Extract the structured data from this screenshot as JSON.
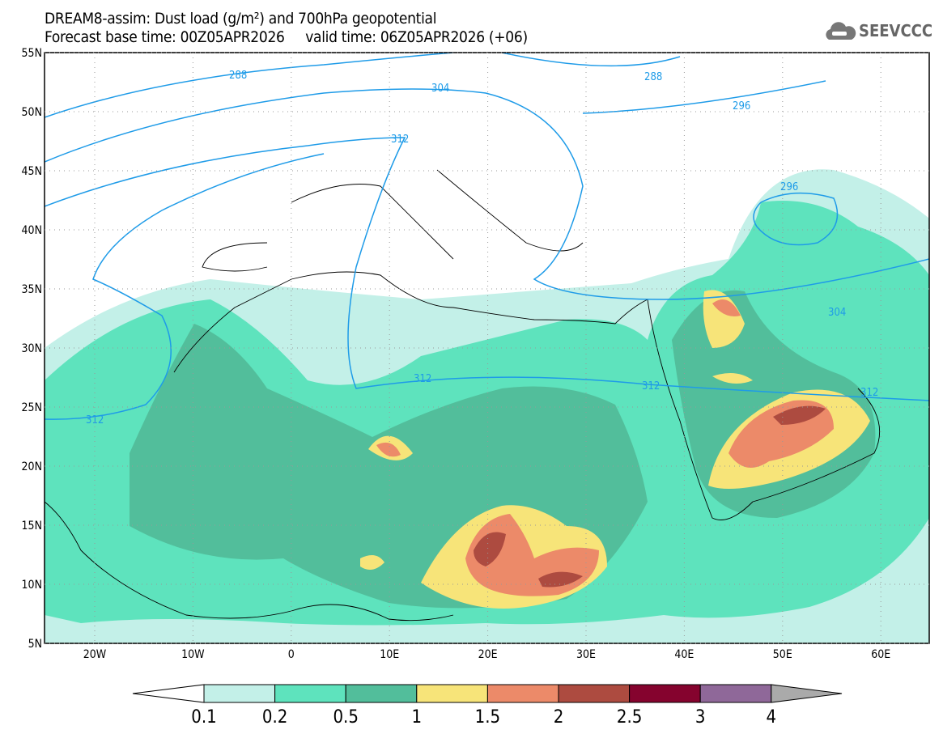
{
  "title": {
    "line1": "DREAM8-assim: Dust load (g/m²) and 700hPa geopotential",
    "line2": "Forecast base time: 00Z05APR2026     valid time: 06Z05APR2026 (+06)"
  },
  "logo": {
    "text": "SEEVCCC",
    "icon": "cloud-icon"
  },
  "map": {
    "lat_labels": [
      "55N",
      "50N",
      "45N",
      "40N",
      "35N",
      "30N",
      "25N",
      "20N",
      "15N",
      "10N",
      "5N"
    ],
    "lon_labels": [
      "20W",
      "10W",
      "0",
      "10E",
      "20E",
      "30E",
      "40E",
      "50E",
      "60E"
    ],
    "contour_color": "#1e9be8",
    "contour_labels": [
      "288",
      "304",
      "312",
      "288",
      "296",
      "296",
      "304",
      "312",
      "312",
      "312",
      "312"
    ]
  },
  "colorbar": {
    "labels": [
      "0.1",
      "0.2",
      "0.5",
      "1",
      "1.5",
      "2",
      "2.5",
      "3",
      "4"
    ],
    "colors": [
      "#ffffff",
      "#c3f0e8",
      "#5ee3bd",
      "#52be9b",
      "#f7e479",
      "#ec8a69",
      "#ad4b40",
      "#85032e",
      "#8f6899",
      "#aaaaaa"
    ]
  }
}
